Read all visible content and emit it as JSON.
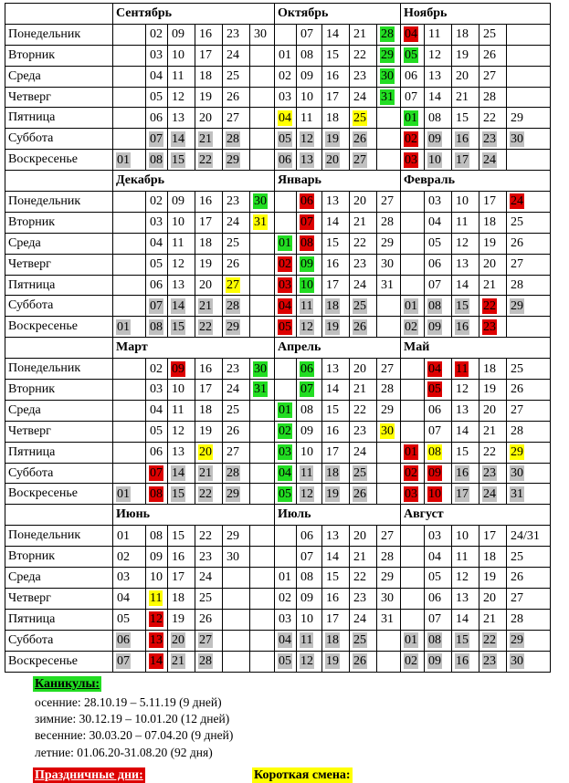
{
  "day_names": [
    "Понедельник",
    "Вторник",
    "Среда",
    "Четверг",
    "Пятница",
    "Суббота",
    "Воскресенье"
  ],
  "colors": {
    "weekend": "#c0c0c0",
    "vacation": "#22dd22",
    "holiday": "#dd0000",
    "short": "#ffff00"
  },
  "blocks": [
    {
      "months": [
        {
          "name": "Сентябрь",
          "rows": [
            [
              "",
              "02",
              "09",
              "16",
              "23",
              "30"
            ],
            [
              "",
              "03",
              "10",
              "17",
              "24",
              ""
            ],
            [
              "",
              "04",
              "11",
              "18",
              "25",
              ""
            ],
            [
              "",
              "05",
              "12",
              "19",
              "26",
              ""
            ],
            [
              "",
              "06",
              "13",
              "20",
              "27",
              ""
            ],
            [
              "",
              "07|g",
              "14|g",
              "21|g",
              "28|g",
              ""
            ],
            [
              "01|g",
              "08|g",
              "15|g",
              "22|g",
              "29|g",
              ""
            ]
          ]
        },
        {
          "name": "Октябрь",
          "rows": [
            [
              "",
              "07",
              "14",
              "21",
              "28|gr"
            ],
            [
              "01",
              "08",
              "15",
              "22",
              "29|gr"
            ],
            [
              "02",
              "09",
              "16",
              "23",
              "30|gr"
            ],
            [
              "03",
              "10",
              "17",
              "24",
              "31|gr"
            ],
            [
              "04|y",
              "11",
              "18",
              "25|y",
              ""
            ],
            [
              "05|g",
              "12|g",
              "19|g",
              "26|g",
              ""
            ],
            [
              "06|g",
              "13|g",
              "20|g",
              "27|g",
              ""
            ]
          ]
        },
        {
          "name": "Ноябрь",
          "rows": [
            [
              "04|r",
              "11",
              "18",
              "25"
            ],
            [
              "05|gr",
              "12",
              "19",
              "26"
            ],
            [
              "06",
              "13",
              "20",
              "27"
            ],
            [
              "07",
              "14",
              "21",
              "28"
            ],
            [
              "01|gr",
              "08",
              "15",
              "22",
              "29"
            ],
            [
              "02|r",
              "09|g",
              "16|g",
              "23|g",
              "30|g"
            ],
            [
              "03|r",
              "10|g",
              "17|g",
              "24|g",
              ""
            ]
          ]
        }
      ]
    },
    {
      "months": [
        {
          "name": "Декабрь",
          "rows": [
            [
              "",
              "02",
              "09",
              "16",
              "23",
              "30|gr"
            ],
            [
              "",
              "03",
              "10",
              "17",
              "24",
              "31|y"
            ],
            [
              "",
              "04",
              "11",
              "18",
              "25",
              ""
            ],
            [
              "",
              "05",
              "12",
              "19",
              "26",
              ""
            ],
            [
              "",
              "06",
              "13",
              "20",
              "27|y",
              ""
            ],
            [
              "",
              "07|g",
              "14|g",
              "21|g",
              "28|g",
              ""
            ],
            [
              "01|g",
              "08|g",
              "15|g",
              "22|g",
              "29|g",
              ""
            ]
          ]
        },
        {
          "name": "Январь",
          "rows": [
            [
              "",
              "06|r",
              "13",
              "20",
              "27"
            ],
            [
              "",
              "07|r",
              "14",
              "21",
              "28"
            ],
            [
              "01|gr",
              "08|r",
              "15",
              "22",
              "29"
            ],
            [
              "02|r",
              "09|gr",
              "16",
              "23",
              "30"
            ],
            [
              "03|r",
              "10|gr",
              "17",
              "24",
              "31"
            ],
            [
              "04|r",
              "11|g",
              "18|g",
              "25|g",
              ""
            ],
            [
              "05|r",
              "12|g",
              "19|g",
              "26|g",
              ""
            ]
          ]
        },
        {
          "name": "Февраль",
          "rows": [
            [
              "",
              "03",
              "10",
              "17",
              "24|r"
            ],
            [
              "",
              "04",
              "11",
              "18",
              "25"
            ],
            [
              "",
              "05",
              "12",
              "19",
              "26"
            ],
            [
              "",
              "06",
              "13",
              "20",
              "27"
            ],
            [
              "",
              "07",
              "14",
              "21",
              "28"
            ],
            [
              "01|g",
              "08|g",
              "15|g",
              "22|r",
              "29|g"
            ],
            [
              "02|g",
              "09|g",
              "16|g",
              "23|r",
              ""
            ]
          ]
        }
      ]
    },
    {
      "months": [
        {
          "name": "Март",
          "rows": [
            [
              "",
              "02",
              "09|r",
              "16",
              "23",
              "30|gr"
            ],
            [
              "",
              "03",
              "10",
              "17",
              "24",
              "31|gr"
            ],
            [
              "",
              "04",
              "11",
              "18",
              "25",
              ""
            ],
            [
              "",
              "05",
              "12",
              "19",
              "26",
              ""
            ],
            [
              "",
              "06",
              "13",
              "20|y",
              "27",
              ""
            ],
            [
              "",
              "07|r",
              "14|g",
              "21|g",
              "28|g",
              ""
            ],
            [
              "01|g",
              "08|r",
              "15|g",
              "22|g",
              "29|g",
              ""
            ]
          ]
        },
        {
          "name": "Апрель",
          "rows": [
            [
              "",
              "06|gr",
              "13",
              "20",
              "27"
            ],
            [
              "",
              "07|gr",
              "14",
              "21",
              "28"
            ],
            [
              "01|gr",
              "08",
              "15",
              "22",
              "29"
            ],
            [
              "02|gr",
              "09",
              "16",
              "23",
              "30|y"
            ],
            [
              "03|gr",
              "10",
              "17",
              "24",
              ""
            ],
            [
              "04|gr",
              "11|g",
              "18|g",
              "25|g",
              ""
            ],
            [
              "05|gr",
              "12|g",
              "19|g",
              "26|g",
              ""
            ]
          ]
        },
        {
          "name": "Май",
          "rows": [
            [
              "",
              "04|r",
              "11|r",
              "18",
              "25"
            ],
            [
              "",
              "05|r",
              "12",
              "19",
              "26"
            ],
            [
              "",
              "06",
              "13",
              "20",
              "27"
            ],
            [
              "",
              "07",
              "14",
              "21",
              "28"
            ],
            [
              "01|r",
              "08|y",
              "15",
              "22",
              "29|y"
            ],
            [
              "02|r",
              "09|r",
              "16|g",
              "23|g",
              "30|g"
            ],
            [
              "03|r",
              "10|r",
              "17|g",
              "24|g",
              "31|g"
            ]
          ]
        }
      ]
    },
    {
      "months": [
        {
          "name": "Июнь",
          "rows": [
            [
              "01",
              "08",
              "15",
              "22",
              "29",
              ""
            ],
            [
              "02",
              "09",
              "16",
              "23",
              "30",
              ""
            ],
            [
              "03",
              "10",
              "17",
              "24",
              "",
              ""
            ],
            [
              "04",
              "11|y",
              "18",
              "25",
              "",
              ""
            ],
            [
              "05",
              "12|r",
              "19",
              "26",
              "",
              ""
            ],
            [
              "06|g",
              "13|r",
              "20|g",
              "27|g",
              "",
              ""
            ],
            [
              "07|g",
              "14|r",
              "21|g",
              "28|g",
              "",
              ""
            ]
          ]
        },
        {
          "name": "Июль",
          "rows": [
            [
              "",
              "06",
              "13",
              "20",
              "27"
            ],
            [
              "",
              "07",
              "14",
              "21",
              "28"
            ],
            [
              "01",
              "08",
              "15",
              "22",
              "29"
            ],
            [
              "02",
              "09",
              "16",
              "23",
              "30"
            ],
            [
              "03",
              "10",
              "17",
              "24",
              "31"
            ],
            [
              "04|g",
              "11|g",
              "18|g",
              "25|g",
              ""
            ],
            [
              "05|g",
              "12|g",
              "19|g",
              "26|g",
              ""
            ]
          ]
        },
        {
          "name": "Август",
          "rows": [
            [
              "",
              "03",
              "10",
              "17",
              "24/31"
            ],
            [
              "",
              "04",
              "11",
              "18",
              "25"
            ],
            [
              "",
              "05",
              "12",
              "19",
              "26"
            ],
            [
              "",
              "06",
              "13",
              "20",
              "27"
            ],
            [
              "",
              "07",
              "14",
              "21",
              "28"
            ],
            [
              "01|g",
              "08|g",
              "15|g",
              "22|g",
              "29|g"
            ],
            [
              "02|g",
              "09|g",
              "16|g",
              "23|g",
              "30|g"
            ]
          ]
        }
      ]
    }
  ],
  "legend": {
    "vacation_title": "Каникулы:",
    "autumn": "осенние: 28.10.19 – 5.11.19 (9 дней)",
    "winter": "зимние: 30.12.19 – 10.01.20 (12 дней)",
    "spring": "весенние: 30.03.20 – 07.04.20 (9 дней)",
    "summer": "летние: 01.06.20-31.08.20 (92 дня)",
    "holiday_title": "Праздничные дни:",
    "short_title": "Короткая смена:"
  }
}
